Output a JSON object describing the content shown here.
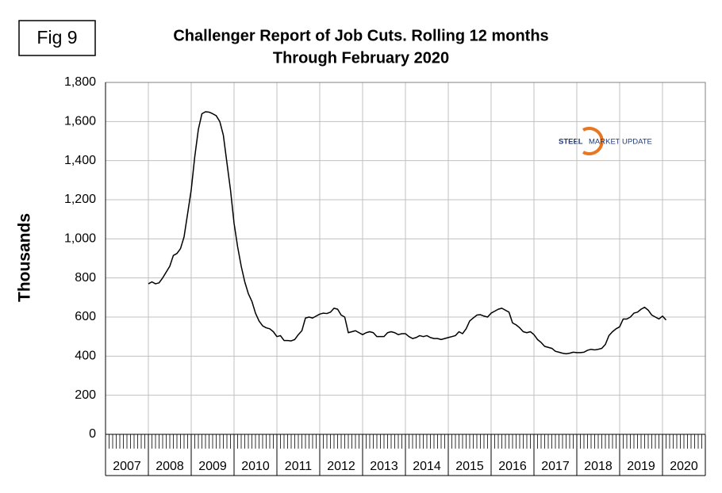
{
  "chart_data": {
    "type": "line",
    "figure_label": "Fig 9",
    "title": "Challenger Report of Job Cuts. Rolling 12 months",
    "subtitle": "Through February 2020",
    "y_label": "Thousands",
    "annotations": [
      "STEEL",
      "MARKET UPDATE"
    ],
    "color": "#000000",
    "grid": true,
    "categories": [
      "2007",
      "2008",
      "2009",
      "2010",
      "2011",
      "2012",
      "2013",
      "2014",
      "2015",
      "2016",
      "2017",
      "2018",
      "2019",
      "2020"
    ],
    "xlim": [
      2007,
      2021
    ],
    "xticks": [
      2007,
      2008,
      2009,
      2010,
      2011,
      2012,
      2013,
      2014,
      2015,
      2016,
      2017,
      2018,
      2019,
      2020,
      2021
    ],
    "ylim": [
      0,
      1800
    ],
    "yticks": [
      0,
      200,
      400,
      600,
      800,
      {
        "value": 1000,
        "label": "1,000"
      },
      {
        "value": 1200,
        "label": "1,200"
      },
      {
        "value": 1400,
        "label": "1,400"
      },
      {
        "value": 1600,
        "label": "1,600"
      },
      {
        "value": 1800,
        "label": "1,800"
      }
    ],
    "x": [
      2008,
      2008.083,
      2008.167,
      2008.25,
      2008.333,
      2008.417,
      2008.5,
      2008.583,
      2008.667,
      2008.75,
      2008.833,
      2008.917,
      2009,
      2009.083,
      2009.167,
      2009.25,
      2009.333,
      2009.417,
      2009.5,
      2009.583,
      2009.667,
      2009.75,
      2009.833,
      2009.917,
      2010,
      2010.083,
      2010.167,
      2010.25,
      2010.333,
      2010.417,
      2010.5,
      2010.583,
      2010.667,
      2010.75,
      2010.833,
      2010.917,
      2011,
      2011.083,
      2011.167,
      2011.25,
      2011.333,
      2011.417,
      2011.5,
      2011.583,
      2011.667,
      2011.75,
      2011.833,
      2011.917,
      2012,
      2012.083,
      2012.167,
      2012.25,
      2012.333,
      2012.417,
      2012.5,
      2012.583,
      2012.667,
      2012.75,
      2012.833,
      2012.917,
      2013,
      2013.083,
      2013.167,
      2013.25,
      2013.333,
      2013.417,
      2013.5,
      2013.583,
      2013.667,
      2013.75,
      2013.833,
      2013.917,
      2014,
      2014.083,
      2014.167,
      2014.25,
      2014.333,
      2014.417,
      2014.5,
      2014.583,
      2014.667,
      2014.75,
      2014.833,
      2014.917,
      2015,
      2015.083,
      2015.167,
      2015.25,
      2015.333,
      2015.417,
      2015.5,
      2015.583,
      2015.667,
      2015.75,
      2015.833,
      2015.917,
      2016,
      2016.083,
      2016.167,
      2016.25,
      2016.333,
      2016.417,
      2016.5,
      2016.583,
      2016.667,
      2016.75,
      2016.833,
      2016.917,
      2017,
      2017.083,
      2017.167,
      2017.25,
      2017.333,
      2017.417,
      2017.5,
      2017.583,
      2017.667,
      2017.75,
      2017.833,
      2017.917,
      2018,
      2018.083,
      2018.167,
      2018.25,
      2018.333,
      2018.417,
      2018.5,
      2018.583,
      2018.667,
      2018.75,
      2018.833,
      2018.917,
      2019,
      2019.083,
      2019.167,
      2019.25,
      2019.333,
      2019.417,
      2019.5,
      2019.583,
      2019.667,
      2019.75,
      2019.833,
      2019.917,
      2020,
      2020.083
    ],
    "values": [
      770,
      780,
      770,
      775,
      800,
      830,
      860,
      915,
      925,
      950,
      1010,
      1130,
      1250,
      1420,
      1560,
      1640,
      1650,
      1648,
      1640,
      1630,
      1600,
      1530,
      1390,
      1250,
      1080,
      960,
      860,
      780,
      720,
      680,
      620,
      580,
      555,
      545,
      540,
      525,
      500,
      505,
      480,
      480,
      478,
      485,
      510,
      530,
      595,
      600,
      595,
      605,
      615,
      620,
      618,
      625,
      645,
      640,
      610,
      600,
      520,
      525,
      530,
      520,
      510,
      520,
      525,
      520,
      500,
      500,
      500,
      520,
      525,
      520,
      510,
      515,
      515,
      500,
      490,
      495,
      505,
      500,
      505,
      495,
      490,
      490,
      485,
      490,
      495,
      500,
      505,
      525,
      515,
      540,
      580,
      595,
      610,
      612,
      605,
      600,
      620,
      630,
      640,
      645,
      635,
      625,
      570,
      560,
      545,
      525,
      520,
      525,
      510,
      485,
      470,
      450,
      445,
      440,
      425,
      420,
      415,
      412,
      415,
      420,
      418,
      418,
      420,
      430,
      435,
      432,
      435,
      440,
      460,
      505,
      525,
      540,
      550,
      590,
      590,
      600,
      620,
      625,
      640,
      650,
      635,
      610,
      600,
      590,
      605,
      585
    ]
  }
}
